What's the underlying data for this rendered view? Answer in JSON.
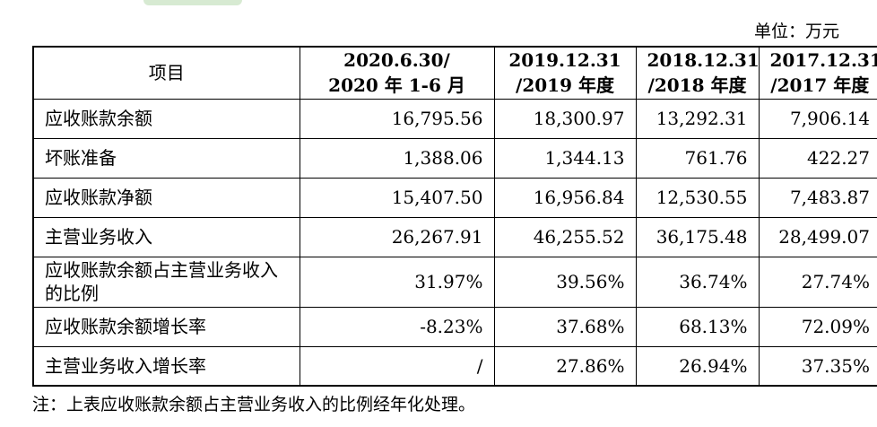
{
  "unit_label": "单位：万元",
  "header": {
    "item": "项目",
    "col1": "2020.6.30/\n2020 年 1-6 月",
    "col2": "2019.12.31\n/2019 年度",
    "col3": "2018.12.31\n/2018 年度",
    "col4": "2017.12.31\n/2017 年度"
  },
  "rows": [
    {
      "label": "应收账款余额",
      "values": [
        "16,795.56",
        "18,300.97",
        "13,292.31",
        "7,906.14"
      ]
    },
    {
      "label": "坏账准备",
      "values": [
        "1,388.06",
        "1,344.13",
        "761.76",
        "422.27"
      ]
    },
    {
      "label": "应收账款净额",
      "values": [
        "15,407.50",
        "16,956.84",
        "12,530.55",
        "7,483.87"
      ]
    },
    {
      "label": "主营业务收入",
      "values": [
        "26,267.91",
        "46,255.52",
        "36,175.48",
        "28,499.07"
      ]
    },
    {
      "label": "应收账款余额占主营业务收入的比例",
      "values": [
        "31.97%",
        "39.56%",
        "36.74%",
        "27.74%"
      ]
    },
    {
      "label": "应收账款余额增长率",
      "values": [
        "-8.23%",
        "37.68%",
        "68.13%",
        "72.09%"
      ]
    },
    {
      "label": "主营业务收入增长率",
      "values": [
        "/",
        "27.86%",
        "26.94%",
        "37.35%"
      ]
    }
  ],
  "note": "注：上表应收账款余额占主营业务收入的比例经年化处理。"
}
